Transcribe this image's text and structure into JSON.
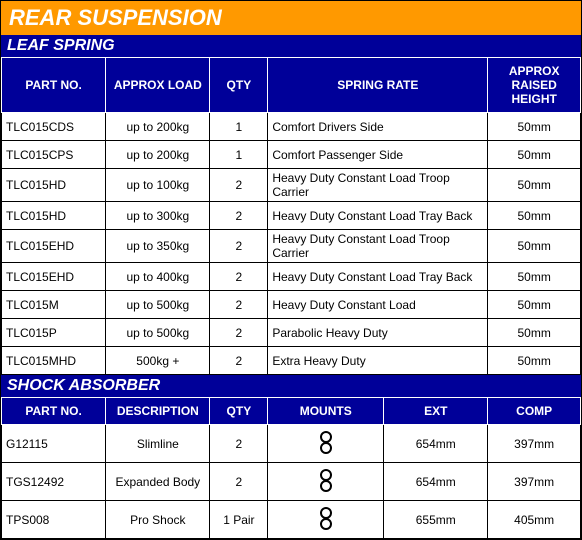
{
  "title": "REAR SUSPENSION",
  "leaf": {
    "heading": "LEAF SPRING",
    "columns": {
      "part": "PART NO.",
      "load": "APPROX LOAD",
      "qty": "QTY",
      "rate": "SPRING RATE",
      "height": "APPROX RAISED HEIGHT"
    },
    "col_widths": [
      "18%",
      "18%",
      "10%",
      "38%",
      "16%"
    ],
    "rows": [
      {
        "part": "TLC015CDS",
        "load": "up to 200kg",
        "qty": "1",
        "rate": "Comfort Drivers Side",
        "height": "50mm"
      },
      {
        "part": "TLC015CPS",
        "load": "up to 200kg",
        "qty": "1",
        "rate": "Comfort Passenger Side",
        "height": "50mm"
      },
      {
        "part": "TLC015HD",
        "load": "up to 100kg",
        "qty": "2",
        "rate": "Heavy Duty Constant Load Troop Carrier",
        "height": "50mm"
      },
      {
        "part": "TLC015HD",
        "load": "up to 300kg",
        "qty": "2",
        "rate": "Heavy Duty Constant Load Tray Back",
        "height": "50mm"
      },
      {
        "part": "TLC015EHD",
        "load": "up to 350kg",
        "qty": "2",
        "rate": "Heavy Duty Constant Load Troop Carrier",
        "height": "50mm"
      },
      {
        "part": "TLC015EHD",
        "load": "up to 400kg",
        "qty": "2",
        "rate": "Heavy Duty Constant Load Tray Back",
        "height": "50mm"
      },
      {
        "part": "TLC015M",
        "load": "up to 500kg",
        "qty": "2",
        "rate": "Heavy Duty Constant Load",
        "height": "50mm"
      },
      {
        "part": "TLC015P",
        "load": "up to 500kg",
        "qty": "2",
        "rate": "Parabolic Heavy Duty",
        "height": "50mm"
      },
      {
        "part": "TLC015MHD",
        "load": "500kg +",
        "qty": "2",
        "rate": "Extra Heavy Duty",
        "height": "50mm"
      }
    ]
  },
  "shock": {
    "heading": "SHOCK ABSORBER",
    "columns": {
      "part": "PART NO.",
      "desc": "DESCRIPTION",
      "qty": "QTY",
      "mounts": "MOUNTS",
      "ext": "EXT",
      "comp": "COMP"
    },
    "col_widths": [
      "18%",
      "18%",
      "10%",
      "20%",
      "18%",
      "16%"
    ],
    "rows": [
      {
        "part": "G12115",
        "desc": "Slimline",
        "qty": "2",
        "mounts": "eye-eye",
        "ext": "654mm",
        "comp": "397mm"
      },
      {
        "part": "TGS12492",
        "desc": "Expanded Body",
        "qty": "2",
        "mounts": "eye-eye",
        "ext": "654mm",
        "comp": "397mm"
      },
      {
        "part": "TPS008",
        "desc": "Pro Shock",
        "qty": "1 Pair",
        "mounts": "eye-eye",
        "ext": "655mm",
        "comp": "405mm"
      }
    ]
  },
  "colors": {
    "title_bg": "#ff9900",
    "section_bg": "#000099",
    "header_text": "#ffffff",
    "border": "#000000"
  }
}
